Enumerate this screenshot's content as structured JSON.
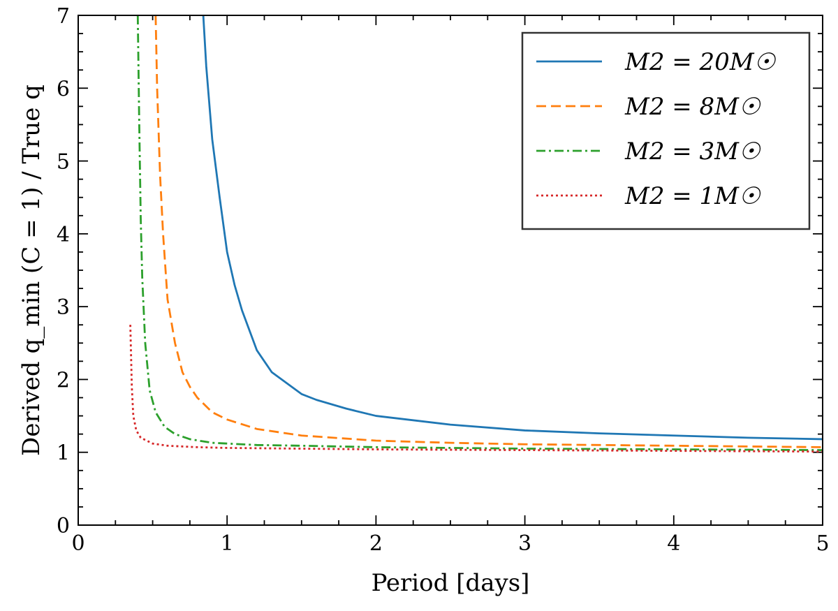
{
  "chart_data": {
    "type": "line",
    "title": "",
    "xlabel": "Period [days]",
    "ylabel": "Derived q_min (C = 1) / True q",
    "xlim": [
      0,
      5
    ],
    "ylim": [
      0,
      7
    ],
    "xticks": [
      "0",
      "1",
      "2",
      "3",
      "4",
      "5"
    ],
    "yticks": [
      "0",
      "1",
      "2",
      "3",
      "4",
      "5",
      "6",
      "7"
    ],
    "grid": false,
    "legend_position": "top-right",
    "series": [
      {
        "name": "M2 = 20M☉",
        "color": "#1f77b4",
        "dash": "solid",
        "points": [
          [
            0.84,
            7.0
          ],
          [
            0.86,
            6.3
          ],
          [
            0.9,
            5.3
          ],
          [
            0.95,
            4.5
          ],
          [
            1.0,
            3.75
          ],
          [
            1.05,
            3.3
          ],
          [
            1.1,
            2.95
          ],
          [
            1.2,
            2.4
          ],
          [
            1.3,
            2.1
          ],
          [
            1.4,
            1.95
          ],
          [
            1.5,
            1.8
          ],
          [
            1.6,
            1.72
          ],
          [
            1.8,
            1.6
          ],
          [
            2.0,
            1.5
          ],
          [
            2.5,
            1.38
          ],
          [
            3.0,
            1.3
          ],
          [
            3.5,
            1.26
          ],
          [
            4.0,
            1.23
          ],
          [
            4.5,
            1.2
          ],
          [
            5.0,
            1.18
          ]
        ]
      },
      {
        "name": "M2 = 8M☉",
        "color": "#ff7f0e",
        "dash": "dashed",
        "points": [
          [
            0.52,
            7.0
          ],
          [
            0.53,
            6.0
          ],
          [
            0.55,
            4.8
          ],
          [
            0.57,
            4.0
          ],
          [
            0.6,
            3.1
          ],
          [
            0.65,
            2.5
          ],
          [
            0.7,
            2.1
          ],
          [
            0.75,
            1.9
          ],
          [
            0.8,
            1.75
          ],
          [
            0.9,
            1.55
          ],
          [
            1.0,
            1.45
          ],
          [
            1.2,
            1.32
          ],
          [
            1.5,
            1.23
          ],
          [
            2.0,
            1.16
          ],
          [
            2.5,
            1.13
          ],
          [
            3.0,
            1.11
          ],
          [
            4.0,
            1.09
          ],
          [
            5.0,
            1.07
          ]
        ]
      },
      {
        "name": "M2 = 3M☉",
        "color": "#2ca02c",
        "dash": "dashdot",
        "points": [
          [
            0.4,
            7.0
          ],
          [
            0.41,
            5.5
          ],
          [
            0.42,
            4.2
          ],
          [
            0.43,
            3.4
          ],
          [
            0.45,
            2.5
          ],
          [
            0.48,
            1.85
          ],
          [
            0.52,
            1.55
          ],
          [
            0.58,
            1.35
          ],
          [
            0.65,
            1.25
          ],
          [
            0.75,
            1.18
          ],
          [
            0.9,
            1.13
          ],
          [
            1.2,
            1.1
          ],
          [
            1.5,
            1.09
          ],
          [
            2.0,
            1.07
          ],
          [
            3.0,
            1.05
          ],
          [
            4.0,
            1.04
          ],
          [
            5.0,
            1.03
          ]
        ]
      },
      {
        "name": "M2 = 1M☉",
        "color": "#d62728",
        "dash": "dotted",
        "points": [
          [
            0.35,
            2.75
          ],
          [
            0.36,
            1.9
          ],
          [
            0.37,
            1.5
          ],
          [
            0.39,
            1.3
          ],
          [
            0.42,
            1.2
          ],
          [
            0.5,
            1.12
          ],
          [
            0.6,
            1.09
          ],
          [
            0.8,
            1.07
          ],
          [
            1.0,
            1.06
          ],
          [
            1.5,
            1.05
          ],
          [
            2.0,
            1.04
          ],
          [
            3.0,
            1.03
          ],
          [
            4.0,
            1.02
          ],
          [
            5.0,
            1.01
          ]
        ]
      }
    ]
  }
}
